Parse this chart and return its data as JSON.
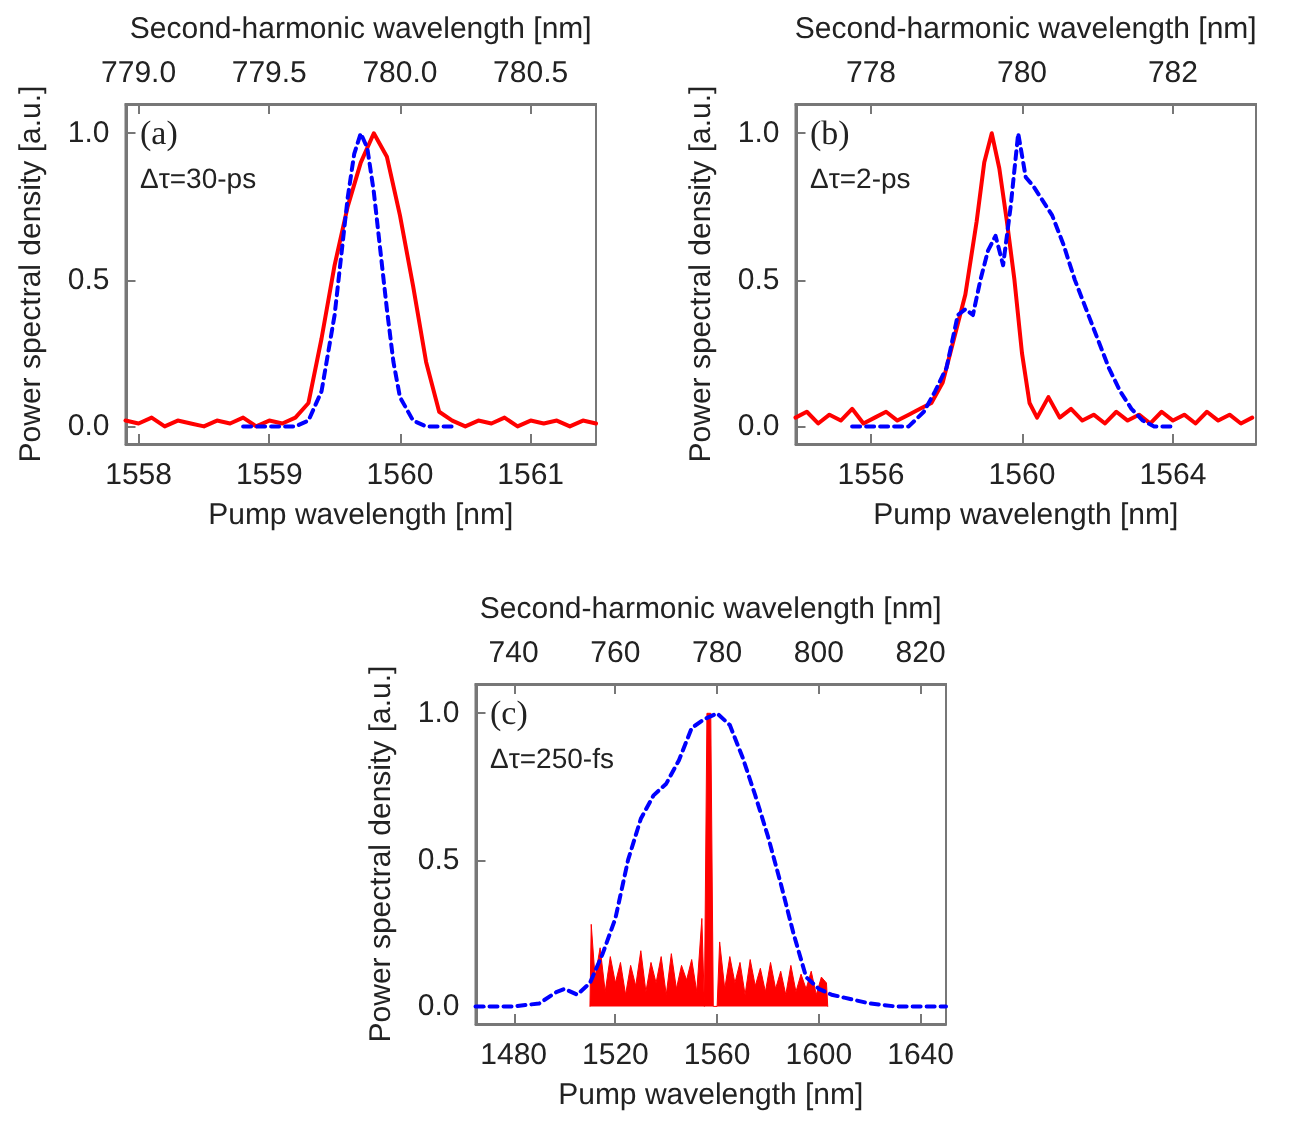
{
  "chart_data": [
    {
      "type": "line",
      "xlabel": "Pump wavelength [nm]",
      "ylabel": "Power spectral density [a.u.]",
      "x2label": "Second-harmonic wavelength [nm]",
      "annotations": [
        "(a)",
        "Δτ=30-ps"
      ],
      "xlim": [
        1557.9,
        1561.5
      ],
      "xticks": [
        1558,
        1559,
        1560,
        1561
      ],
      "x2lim": [
        778.95,
        780.75
      ],
      "x2ticks": [
        {
          "value": 779,
          "label": "779.0"
        },
        {
          "value": 779.5,
          "label": "779.5"
        },
        {
          "value": 780,
          "label": "780.0"
        },
        {
          "value": 780.5,
          "label": "780.5"
        }
      ],
      "ylim": [
        -0.06,
        1.1
      ],
      "yticks": [
        {
          "value": 0,
          "label": "0.0"
        },
        {
          "value": 0.5,
          "label": "0.5"
        },
        {
          "value": 1,
          "label": "1.0"
        }
      ],
      "grid": false,
      "marker": "none",
      "series": [
        {
          "color": "#ff0000",
          "line_style": "solid",
          "x": [
            1557.9,
            1558.0,
            1558.1,
            1558.2,
            1558.3,
            1558.4,
            1558.5,
            1558.6,
            1558.7,
            1558.8,
            1558.9,
            1559.0,
            1559.1,
            1559.2,
            1559.3,
            1559.4,
            1559.5,
            1559.6,
            1559.7,
            1559.8,
            1559.9,
            1560.0,
            1560.1,
            1560.2,
            1560.3,
            1560.4,
            1560.5,
            1560.6,
            1560.7,
            1560.8,
            1560.9,
            1561.0,
            1561.1,
            1561.2,
            1561.3,
            1561.4,
            1561.5
          ],
          "values": [
            0.02,
            0.01,
            0.03,
            0.0,
            0.02,
            0.01,
            0.0,
            0.02,
            0.01,
            0.03,
            0.0,
            0.02,
            0.01,
            0.03,
            0.08,
            0.3,
            0.55,
            0.75,
            0.9,
            1.0,
            0.92,
            0.72,
            0.48,
            0.22,
            0.05,
            0.02,
            0.0,
            0.02,
            0.01,
            0.03,
            0.0,
            0.02,
            0.01,
            0.02,
            0.0,
            0.02,
            0.01
          ]
        },
        {
          "color": "#0000ff",
          "line_style": "dashed",
          "x": [
            1558.8,
            1559.2,
            1559.3,
            1559.4,
            1559.5,
            1559.55,
            1559.6,
            1559.65,
            1559.7,
            1559.75,
            1559.8,
            1559.85,
            1559.9,
            1559.95,
            1560.0,
            1560.1,
            1560.2,
            1560.4
          ],
          "values": [
            0,
            0,
            0.02,
            0.12,
            0.38,
            0.58,
            0.78,
            0.93,
            1.0,
            0.95,
            0.8,
            0.6,
            0.4,
            0.22,
            0.1,
            0.02,
            0,
            0
          ]
        }
      ]
    },
    {
      "type": "line",
      "xlabel": "Pump wavelength [nm]",
      "ylabel": "Power spectral density [a.u.]",
      "x2label": "Second-harmonic wavelength [nm]",
      "annotations": [
        "(b)",
        "Δτ=2-ps"
      ],
      "xlim": [
        1554,
        1566.2
      ],
      "xticks": [
        1556,
        1560,
        1564
      ],
      "x2lim": [
        777,
        783.1
      ],
      "x2ticks": [
        778,
        780,
        782
      ],
      "ylim": [
        -0.06,
        1.1
      ],
      "yticks": [
        {
          "value": 0,
          "label": "0.0"
        },
        {
          "value": 0.5,
          "label": "0.5"
        },
        {
          "value": 1,
          "label": "1.0"
        }
      ],
      "grid": false,
      "marker": "none",
      "series": [
        {
          "color": "#ff0000",
          "line_style": "solid",
          "x": [
            1554,
            1554.3,
            1554.6,
            1554.9,
            1555.2,
            1555.5,
            1555.8,
            1556.1,
            1556.4,
            1556.7,
            1557.0,
            1557.3,
            1557.6,
            1557.9,
            1558.2,
            1558.5,
            1558.8,
            1559.0,
            1559.2,
            1559.4,
            1559.6,
            1559.8,
            1560.0,
            1560.2,
            1560.4,
            1560.7,
            1561.0,
            1561.3,
            1561.6,
            1561.9,
            1562.2,
            1562.5,
            1562.8,
            1563.1,
            1563.4,
            1563.7,
            1564.0,
            1564.3,
            1564.6,
            1564.9,
            1565.2,
            1565.5,
            1565.8,
            1566.1
          ],
          "values": [
            0.03,
            0.05,
            0.01,
            0.04,
            0.02,
            0.06,
            0.01,
            0.03,
            0.05,
            0.02,
            0.04,
            0.06,
            0.08,
            0.15,
            0.3,
            0.45,
            0.7,
            0.9,
            1.0,
            0.88,
            0.7,
            0.5,
            0.25,
            0.08,
            0.03,
            0.1,
            0.03,
            0.06,
            0.02,
            0.04,
            0.01,
            0.05,
            0.02,
            0.04,
            0.01,
            0.05,
            0.02,
            0.04,
            0.01,
            0.05,
            0.02,
            0.04,
            0.01,
            0.03
          ]
        },
        {
          "color": "#0000ff",
          "line_style": "dashed",
          "x": [
            1555.5,
            1557.0,
            1557.4,
            1557.7,
            1558.0,
            1558.3,
            1558.5,
            1558.7,
            1558.9,
            1559.1,
            1559.3,
            1559.5,
            1559.7,
            1559.9,
            1560.1,
            1560.3,
            1560.5,
            1560.8,
            1561.1,
            1561.4,
            1561.7,
            1562.0,
            1562.3,
            1562.6,
            1562.9,
            1563.2,
            1563.5,
            1564.0
          ],
          "values": [
            0,
            0,
            0.05,
            0.12,
            0.2,
            0.38,
            0.4,
            0.38,
            0.5,
            0.6,
            0.65,
            0.55,
            0.75,
            1.0,
            0.85,
            0.82,
            0.78,
            0.72,
            0.62,
            0.5,
            0.4,
            0.3,
            0.2,
            0.12,
            0.06,
            0.02,
            0,
            0
          ]
        }
      ]
    },
    {
      "type": "line",
      "xlabel": "Pump wavelength [nm]",
      "ylabel": "Power spectral density [a.u.]",
      "x2label": "Second-harmonic wavelength [nm]",
      "annotations": [
        "(c)",
        "Δτ=250-fs"
      ],
      "xlim": [
        1465,
        1650
      ],
      "xticks": [
        1480,
        1520,
        1560,
        1600,
        1640
      ],
      "x2lim": [
        732.5,
        825
      ],
      "x2ticks": [
        740,
        760,
        780,
        800,
        820
      ],
      "ylim": [
        -0.06,
        1.1
      ],
      "yticks": [
        {
          "value": 0,
          "label": "0.0"
        },
        {
          "value": 0.5,
          "label": "0.5"
        },
        {
          "value": 1,
          "label": "1.0"
        }
      ],
      "grid": false,
      "marker": "none",
      "series": [
        {
          "type": "area",
          "color": "#ff0000",
          "line_style": "solid",
          "x": [
            1510,
            1510.5,
            1512,
            1514,
            1516,
            1518,
            1520,
            1522,
            1524,
            1526,
            1528,
            1530,
            1532,
            1534,
            1536,
            1538,
            1540,
            1542,
            1544,
            1546,
            1548,
            1550,
            1552,
            1554,
            1555,
            1556,
            1557.5,
            1558.5,
            1560,
            1561,
            1563,
            1565,
            1567,
            1569,
            1571,
            1573,
            1575,
            1577,
            1579,
            1581,
            1583,
            1585,
            1587,
            1589,
            1591,
            1593,
            1595,
            1597,
            1599,
            1601,
            1603,
            1603.5
          ],
          "values": [
            0,
            0.28,
            0.1,
            0.2,
            0.05,
            0.17,
            0.08,
            0.15,
            0.04,
            0.14,
            0.07,
            0.19,
            0.05,
            0.15,
            0.08,
            0.17,
            0.04,
            0.18,
            0.06,
            0.14,
            0.09,
            0.16,
            0.05,
            0.3,
            0.0,
            1.0,
            1.0,
            0.0,
            0.0,
            0.22,
            0.06,
            0.17,
            0.08,
            0.15,
            0.04,
            0.16,
            0.07,
            0.13,
            0.05,
            0.15,
            0.06,
            0.12,
            0.04,
            0.14,
            0.05,
            0.11,
            0.06,
            0.12,
            0.04,
            0.1,
            0.08,
            0
          ]
        },
        {
          "color": "#0000ff",
          "line_style": "dashed",
          "x": [
            1465,
            1480,
            1490,
            1497,
            1500,
            1505,
            1510,
            1515,
            1520,
            1525,
            1530,
            1535,
            1540,
            1545,
            1550,
            1555,
            1560,
            1565,
            1570,
            1575,
            1580,
            1585,
            1590,
            1595,
            1600,
            1605,
            1610,
            1620,
            1630,
            1650
          ],
          "values": [
            0,
            0,
            0.01,
            0.05,
            0.06,
            0.04,
            0.08,
            0.18,
            0.3,
            0.5,
            0.64,
            0.72,
            0.76,
            0.84,
            0.95,
            0.98,
            1.0,
            0.96,
            0.85,
            0.72,
            0.58,
            0.42,
            0.25,
            0.1,
            0.06,
            0.04,
            0.03,
            0.01,
            0,
            0
          ]
        }
      ]
    }
  ]
}
